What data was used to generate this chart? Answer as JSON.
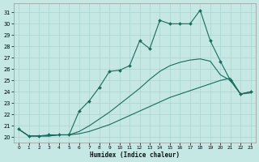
{
  "xlabel": "Humidex (Indice chaleur)",
  "bg_color": "#c5e8e4",
  "grid_color": "#a8d4d0",
  "line_color": "#1a6b5e",
  "xlim_min": -0.5,
  "xlim_max": 23.5,
  "ylim_min": 19.5,
  "ylim_max": 31.8,
  "yticks": [
    20,
    21,
    22,
    23,
    24,
    25,
    26,
    27,
    28,
    29,
    30,
    31
  ],
  "xticks": [
    0,
    1,
    2,
    3,
    4,
    5,
    6,
    7,
    8,
    9,
    10,
    11,
    12,
    13,
    14,
    15,
    16,
    17,
    18,
    19,
    20,
    21,
    22,
    23
  ],
  "series": [
    {
      "x": [
        0,
        1,
        2,
        3,
        4,
        5,
        6,
        7,
        8,
        9,
        10,
        11,
        12,
        13,
        14,
        15,
        16,
        17,
        18,
        19,
        20,
        21,
        22,
        23
      ],
      "y": [
        20.7,
        20.1,
        20.1,
        20.1,
        20.2,
        20.2,
        20.3,
        20.5,
        20.8,
        21.1,
        21.5,
        21.9,
        22.3,
        22.7,
        23.1,
        23.5,
        23.8,
        24.1,
        24.4,
        24.7,
        25.0,
        25.2,
        23.8,
        23.9
      ],
      "marker": false,
      "lw": 0.8
    },
    {
      "x": [
        0,
        1,
        2,
        3,
        4,
        5,
        6,
        7,
        8,
        9,
        10,
        11,
        12,
        13,
        14,
        15,
        16,
        17,
        18,
        19,
        20,
        21,
        22,
        23
      ],
      "y": [
        20.7,
        20.1,
        20.1,
        20.1,
        20.2,
        20.2,
        20.5,
        21.0,
        21.6,
        22.2,
        22.9,
        23.6,
        24.3,
        25.1,
        25.8,
        26.3,
        26.6,
        26.8,
        26.9,
        26.7,
        25.5,
        25.0,
        23.8,
        24.0
      ],
      "marker": false,
      "lw": 0.8
    },
    {
      "x": [
        0,
        1,
        2,
        3,
        4,
        5,
        6,
        7,
        8,
        9,
        10,
        11,
        12,
        13,
        14,
        15,
        16,
        17,
        18,
        19,
        20,
        21,
        22,
        23
      ],
      "y": [
        20.7,
        20.1,
        20.1,
        20.2,
        20.2,
        20.2,
        22.3,
        23.2,
        24.4,
        25.8,
        25.9,
        26.3,
        28.5,
        27.8,
        30.3,
        30.0,
        30.0,
        30.0,
        31.2,
        28.5,
        26.7,
        25.0,
        23.8,
        24.0
      ],
      "marker": true,
      "lw": 0.8
    }
  ]
}
